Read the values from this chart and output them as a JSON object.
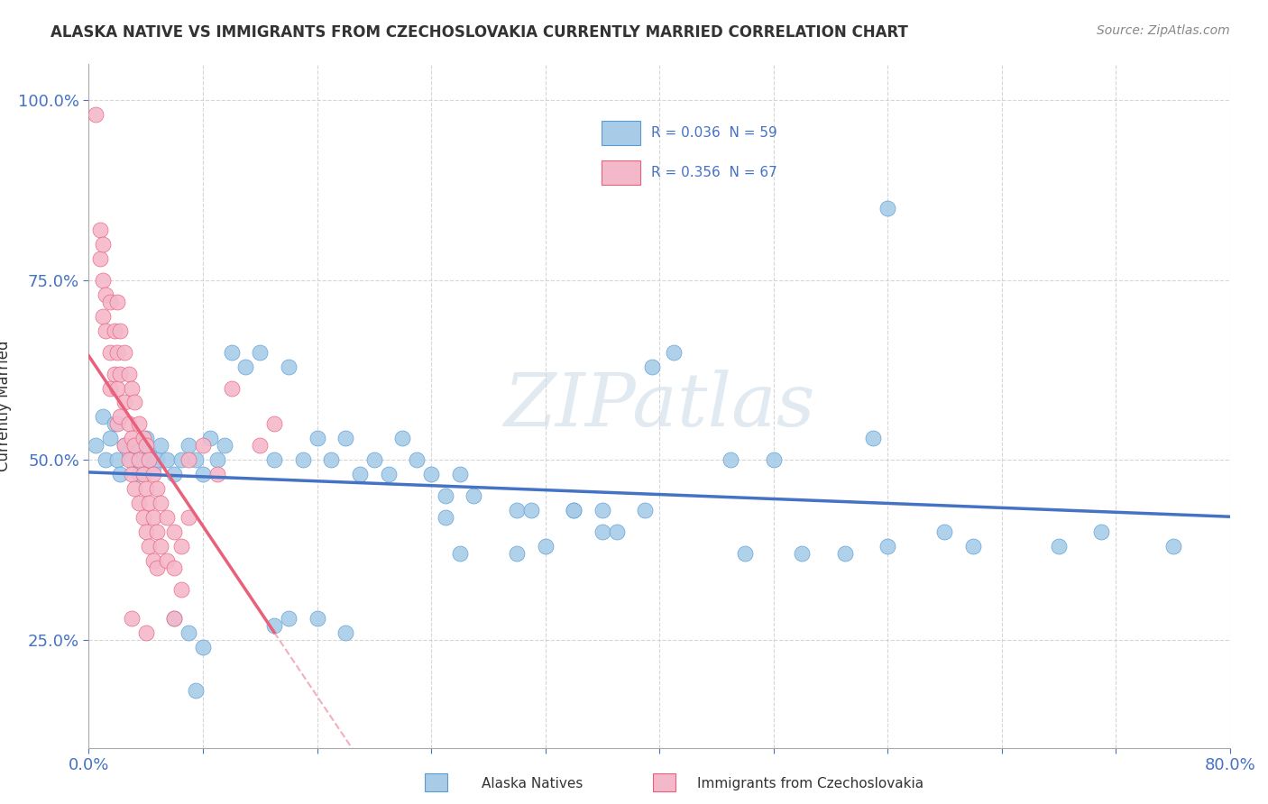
{
  "title": "ALASKA NATIVE VS IMMIGRANTS FROM CZECHOSLOVAKIA CURRENTLY MARRIED CORRELATION CHART",
  "source_text": "Source: ZipAtlas.com",
  "ylabel": "Currently Married",
  "xlim": [
    0.0,
    0.8
  ],
  "ylim": [
    0.1,
    1.05
  ],
  "xticks": [
    0.0,
    0.08,
    0.16,
    0.24,
    0.32,
    0.4,
    0.48,
    0.56,
    0.64,
    0.72,
    0.8
  ],
  "ytick_positions": [
    0.25,
    0.5,
    0.75,
    1.0
  ],
  "ytick_labels": [
    "25.0%",
    "50.0%",
    "75.0%",
    "100.0%"
  ],
  "blue_color": "#a8cce8",
  "pink_color": "#f4b8cb",
  "blue_edge_color": "#5b9bd5",
  "pink_edge_color": "#e8607a",
  "blue_line_color": "#4472c4",
  "pink_line_color": "#e8607a",
  "watermark": "ZIPatlas",
  "blue_scatter": [
    [
      0.005,
      0.52
    ],
    [
      0.01,
      0.56
    ],
    [
      0.012,
      0.5
    ],
    [
      0.015,
      0.53
    ],
    [
      0.018,
      0.55
    ],
    [
      0.02,
      0.5
    ],
    [
      0.022,
      0.48
    ],
    [
      0.025,
      0.52
    ],
    [
      0.028,
      0.51
    ],
    [
      0.03,
      0.5
    ],
    [
      0.032,
      0.52
    ],
    [
      0.035,
      0.48
    ],
    [
      0.038,
      0.5
    ],
    [
      0.04,
      0.53
    ],
    [
      0.042,
      0.51
    ],
    [
      0.045,
      0.49
    ],
    [
      0.048,
      0.5
    ],
    [
      0.05,
      0.52
    ],
    [
      0.055,
      0.5
    ],
    [
      0.06,
      0.48
    ],
    [
      0.065,
      0.5
    ],
    [
      0.07,
      0.52
    ],
    [
      0.075,
      0.5
    ],
    [
      0.08,
      0.48
    ],
    [
      0.085,
      0.53
    ],
    [
      0.09,
      0.5
    ],
    [
      0.095,
      0.52
    ],
    [
      0.1,
      0.65
    ],
    [
      0.11,
      0.63
    ],
    [
      0.12,
      0.65
    ],
    [
      0.13,
      0.5
    ],
    [
      0.14,
      0.63
    ],
    [
      0.15,
      0.5
    ],
    [
      0.16,
      0.53
    ],
    [
      0.17,
      0.5
    ],
    [
      0.18,
      0.53
    ],
    [
      0.19,
      0.48
    ],
    [
      0.2,
      0.5
    ],
    [
      0.21,
      0.48
    ],
    [
      0.22,
      0.53
    ],
    [
      0.23,
      0.5
    ],
    [
      0.24,
      0.48
    ],
    [
      0.25,
      0.45
    ],
    [
      0.26,
      0.48
    ],
    [
      0.27,
      0.45
    ],
    [
      0.3,
      0.43
    ],
    [
      0.31,
      0.43
    ],
    [
      0.34,
      0.43
    ],
    [
      0.36,
      0.4
    ],
    [
      0.37,
      0.4
    ],
    [
      0.395,
      0.63
    ],
    [
      0.41,
      0.65
    ],
    [
      0.45,
      0.5
    ],
    [
      0.48,
      0.5
    ],
    [
      0.55,
      0.53
    ],
    [
      0.56,
      0.85
    ],
    [
      0.6,
      0.4
    ],
    [
      0.62,
      0.38
    ],
    [
      0.06,
      0.28
    ],
    [
      0.07,
      0.26
    ],
    [
      0.075,
      0.18
    ],
    [
      0.08,
      0.24
    ],
    [
      0.13,
      0.27
    ],
    [
      0.14,
      0.28
    ],
    [
      0.16,
      0.28
    ],
    [
      0.18,
      0.26
    ],
    [
      0.25,
      0.42
    ],
    [
      0.26,
      0.37
    ],
    [
      0.3,
      0.37
    ],
    [
      0.32,
      0.38
    ],
    [
      0.34,
      0.43
    ],
    [
      0.36,
      0.43
    ],
    [
      0.39,
      0.43
    ],
    [
      0.46,
      0.37
    ],
    [
      0.5,
      0.37
    ],
    [
      0.53,
      0.37
    ],
    [
      0.56,
      0.38
    ],
    [
      0.68,
      0.38
    ],
    [
      0.71,
      0.4
    ],
    [
      0.76,
      0.38
    ]
  ],
  "pink_scatter": [
    [
      0.005,
      0.98
    ],
    [
      0.008,
      0.82
    ],
    [
      0.008,
      0.78
    ],
    [
      0.01,
      0.8
    ],
    [
      0.01,
      0.75
    ],
    [
      0.01,
      0.7
    ],
    [
      0.012,
      0.73
    ],
    [
      0.012,
      0.68
    ],
    [
      0.015,
      0.72
    ],
    [
      0.015,
      0.65
    ],
    [
      0.015,
      0.6
    ],
    [
      0.018,
      0.68
    ],
    [
      0.018,
      0.62
    ],
    [
      0.02,
      0.72
    ],
    [
      0.02,
      0.65
    ],
    [
      0.02,
      0.6
    ],
    [
      0.02,
      0.55
    ],
    [
      0.022,
      0.68
    ],
    [
      0.022,
      0.62
    ],
    [
      0.022,
      0.56
    ],
    [
      0.025,
      0.65
    ],
    [
      0.025,
      0.58
    ],
    [
      0.025,
      0.52
    ],
    [
      0.028,
      0.62
    ],
    [
      0.028,
      0.55
    ],
    [
      0.028,
      0.5
    ],
    [
      0.03,
      0.6
    ],
    [
      0.03,
      0.53
    ],
    [
      0.03,
      0.48
    ],
    [
      0.032,
      0.58
    ],
    [
      0.032,
      0.52
    ],
    [
      0.032,
      0.46
    ],
    [
      0.035,
      0.55
    ],
    [
      0.035,
      0.5
    ],
    [
      0.035,
      0.44
    ],
    [
      0.038,
      0.53
    ],
    [
      0.038,
      0.48
    ],
    [
      0.038,
      0.42
    ],
    [
      0.04,
      0.52
    ],
    [
      0.04,
      0.46
    ],
    [
      0.04,
      0.4
    ],
    [
      0.042,
      0.5
    ],
    [
      0.042,
      0.44
    ],
    [
      0.042,
      0.38
    ],
    [
      0.045,
      0.48
    ],
    [
      0.045,
      0.42
    ],
    [
      0.045,
      0.36
    ],
    [
      0.048,
      0.46
    ],
    [
      0.048,
      0.4
    ],
    [
      0.048,
      0.35
    ],
    [
      0.05,
      0.44
    ],
    [
      0.05,
      0.38
    ],
    [
      0.055,
      0.42
    ],
    [
      0.055,
      0.36
    ],
    [
      0.06,
      0.4
    ],
    [
      0.06,
      0.35
    ],
    [
      0.065,
      0.38
    ],
    [
      0.065,
      0.32
    ],
    [
      0.07,
      0.5
    ],
    [
      0.07,
      0.42
    ],
    [
      0.08,
      0.52
    ],
    [
      0.09,
      0.48
    ],
    [
      0.1,
      0.6
    ],
    [
      0.12,
      0.52
    ],
    [
      0.13,
      0.55
    ],
    [
      0.03,
      0.28
    ],
    [
      0.04,
      0.26
    ],
    [
      0.06,
      0.28
    ]
  ]
}
